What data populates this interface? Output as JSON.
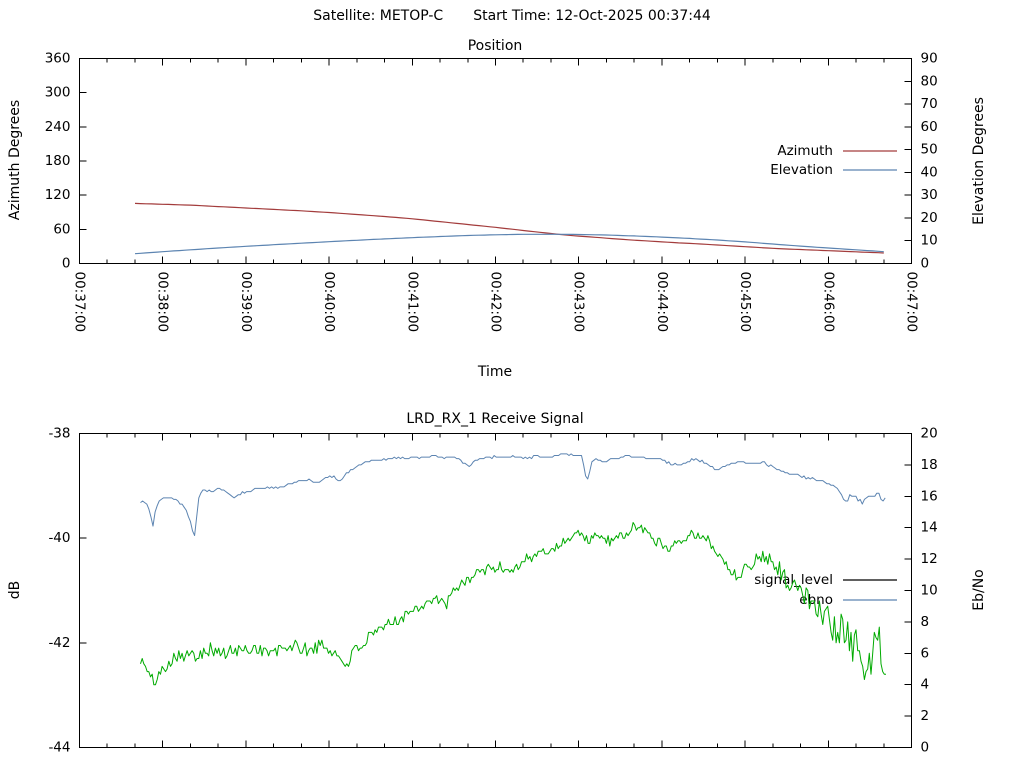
{
  "header": {
    "satellite": "Satellite: METOP-C",
    "start_time": "Start Time: 12-Oct-2025 00:37:44"
  },
  "colors": {
    "azimuth": "#a33c3c",
    "elevation": "#5c84b1",
    "signal": "#00aa00",
    "ebno": "#5c84b1",
    "legend_signal_sample": "#000000",
    "axis": "#000000",
    "background": "#ffffff"
  },
  "chart_data": [
    {
      "type": "line",
      "title": "Position",
      "xlabel": "Time",
      "ylabel_left": "Azimuth Degrees",
      "ylabel_right": "Elevation Degrees",
      "x_range": [
        0,
        600
      ],
      "x_ticks": {
        "values": [
          0,
          60,
          120,
          180,
          240,
          300,
          360,
          420,
          480,
          540,
          600
        ],
        "labels": [
          "00:37:00",
          "00:38:00",
          "00:39:00",
          "00:40:00",
          "00:41:00",
          "00:42:00",
          "00:43:00",
          "00:44:00",
          "00:45:00",
          "00:46:00",
          "00:47:00"
        ],
        "minor_step": 20
      },
      "y_left": {
        "min": 0,
        "max": 360,
        "values": [
          0,
          60,
          120,
          180,
          240,
          300,
          360
        ],
        "labels": [
          "0",
          "60",
          "120",
          "180",
          "240",
          "300",
          "360"
        ]
      },
      "y_right": {
        "min": 0,
        "max": 90,
        "values": [
          0,
          10,
          20,
          30,
          40,
          50,
          60,
          70,
          80,
          90
        ],
        "labels": [
          "0",
          "10",
          "20",
          "30",
          "40",
          "50",
          "60",
          "70",
          "80",
          "90"
        ]
      },
      "legend": [
        {
          "label": "Azimuth",
          "line_color": "#a33c3c"
        },
        {
          "label": "Elevation",
          "line_color": "#5c84b1"
        }
      ],
      "series": [
        {
          "name": "Azimuth",
          "axis": "left",
          "color": "#a33c3c",
          "width": 1.2,
          "sample_step": 4,
          "anchors": [
            [
              40,
              105.5
            ],
            [
              80,
              102.5
            ],
            [
              120,
              97.5
            ],
            [
              160,
              92.5
            ],
            [
              180,
              89.5
            ],
            [
              215,
              83.5
            ],
            [
              240,
              78.5
            ],
            [
              270,
              71
            ],
            [
              300,
              63.5
            ],
            [
              320,
              58
            ],
            [
              350,
              50
            ],
            [
              380,
              44.5
            ],
            [
              400,
              41
            ],
            [
              430,
              36.5
            ],
            [
              450,
              34
            ],
            [
              480,
              29.5
            ],
            [
              505,
              26
            ],
            [
              540,
              22.5
            ],
            [
              560,
              20.5
            ],
            [
              580,
              18.5
            ]
          ]
        },
        {
          "name": "Elevation",
          "axis": "right",
          "color": "#5c84b1",
          "width": 1.2,
          "sample_step": 4,
          "anchors": [
            [
              40,
              4.3
            ],
            [
              70,
              5.6
            ],
            [
              100,
              6.8
            ],
            [
              130,
              7.9
            ],
            [
              160,
              8.9
            ],
            [
              190,
              9.9
            ],
            [
              220,
              10.8
            ],
            [
              250,
              11.6
            ],
            [
              280,
              12.3
            ],
            [
              300,
              12.6
            ],
            [
              320,
              12.8
            ],
            [
              340,
              12.85
            ],
            [
              360,
              12.75
            ],
            [
              380,
              12.5
            ],
            [
              400,
              12.1
            ],
            [
              420,
              11.6
            ],
            [
              440,
              11.0
            ],
            [
              460,
              10.3
            ],
            [
              480,
              9.5
            ],
            [
              505,
              8.3
            ],
            [
              525,
              7.4
            ],
            [
              545,
              6.6
            ],
            [
              565,
              5.8
            ],
            [
              580,
              5.2
            ]
          ]
        }
      ]
    },
    {
      "type": "line",
      "title": "LRD_RX_1 Receive Signal",
      "xlabel": "",
      "ylabel_left": "dB",
      "ylabel_right": "Eb/No",
      "x_range": [
        0,
        600
      ],
      "x_ticks": {
        "values": [
          0,
          60,
          120,
          180,
          240,
          300,
          360,
          420,
          480,
          540,
          600
        ],
        "labels": [],
        "minor_step": 20
      },
      "y_left": {
        "min": -44,
        "max": -38,
        "values": [
          -44,
          -42,
          -40,
          -38
        ],
        "labels": [
          "-44",
          "-42",
          "-40",
          "-38"
        ]
      },
      "y_right": {
        "min": 0,
        "max": 20,
        "values": [
          0,
          2,
          4,
          6,
          8,
          10,
          12,
          14,
          16,
          18,
          20
        ],
        "labels": [
          "0",
          "2",
          "4",
          "6",
          "8",
          "10",
          "12",
          "14",
          "16",
          "18",
          "20"
        ]
      },
      "legend": [
        {
          "label": "signal_level",
          "line_color": "#000000"
        },
        {
          "label": "ebno",
          "line_color": "#5c84b1"
        }
      ],
      "series": [
        {
          "name": "signal_level",
          "axis": "left",
          "color": "#00aa00",
          "width": 1.0,
          "sample_step": 1.2,
          "quantize": 0.05,
          "noise_seed": 101,
          "anchors": [
            [
              44,
              -42.3
            ],
            [
              48,
              -42.5
            ],
            [
              53,
              -42.75
            ],
            [
              58,
              -42.6
            ],
            [
              64,
              -42.35
            ],
            [
              72,
              -42.2
            ],
            [
              82,
              -42.25
            ],
            [
              92,
              -42.1
            ],
            [
              104,
              -42.2
            ],
            [
              116,
              -42.15
            ],
            [
              128,
              -42.1
            ],
            [
              140,
              -42.2
            ],
            [
              152,
              -42.05
            ],
            [
              164,
              -42.15
            ],
            [
              175,
              -42.05
            ],
            [
              184,
              -42.2
            ],
            [
              192,
              -42.4
            ],
            [
              199,
              -42.15
            ],
            [
              208,
              -41.95
            ],
            [
              220,
              -41.7
            ],
            [
              232,
              -41.5
            ],
            [
              244,
              -41.3
            ],
            [
              256,
              -41.15
            ],
            [
              264,
              -41.3
            ],
            [
              272,
              -40.95
            ],
            [
              282,
              -40.75
            ],
            [
              292,
              -40.6
            ],
            [
              302,
              -40.55
            ],
            [
              312,
              -40.6
            ],
            [
              322,
              -40.4
            ],
            [
              332,
              -40.3
            ],
            [
              342,
              -40.2
            ],
            [
              352,
              -40.0
            ],
            [
              360,
              -39.9
            ],
            [
              368,
              -40.05
            ],
            [
              376,
              -39.95
            ],
            [
              384,
              -40.1
            ],
            [
              392,
              -39.95
            ],
            [
              400,
              -39.8
            ],
            [
              408,
              -39.85
            ],
            [
              416,
              -40.05
            ],
            [
              424,
              -40.2
            ],
            [
              432,
              -40.05
            ],
            [
              440,
              -39.9
            ],
            [
              448,
              -40.0
            ],
            [
              456,
              -40.1
            ],
            [
              462,
              -40.35
            ],
            [
              468,
              -40.55
            ],
            [
              474,
              -40.7
            ],
            [
              480,
              -40.6
            ],
            [
              486,
              -40.45
            ],
            [
              492,
              -40.35
            ],
            [
              498,
              -40.4
            ],
            [
              504,
              -40.55
            ],
            [
              510,
              -40.8
            ],
            [
              516,
              -41.0
            ],
            [
              524,
              -41.1
            ],
            [
              532,
              -41.25
            ],
            [
              540,
              -41.5
            ],
            [
              546,
              -41.9
            ],
            [
              551,
              -41.7
            ],
            [
              556,
              -42.1
            ],
            [
              560,
              -41.9
            ],
            [
              564,
              -42.3
            ],
            [
              568,
              -42.7
            ],
            [
              572,
              -42.2
            ],
            [
              576,
              -41.8
            ],
            [
              579,
              -42.3
            ],
            [
              582,
              -42.6
            ]
          ],
          "noise_amp": [
            [
              44,
              0.13
            ],
            [
              190,
              0.13
            ],
            [
              240,
              0.11
            ],
            [
              330,
              0.1
            ],
            [
              450,
              0.1
            ],
            [
              500,
              0.15
            ],
            [
              530,
              0.25
            ],
            [
              545,
              0.33
            ],
            [
              582,
              0.35
            ]
          ]
        },
        {
          "name": "ebno",
          "axis": "right",
          "color": "#5c84b1",
          "width": 1.0,
          "sample_step": 1.5,
          "quantize": 0.1,
          "noise_seed": 202,
          "anchors": [
            [
              44,
              15.7
            ],
            [
              48,
              15.6
            ],
            [
              51,
              15.0
            ],
            [
              53,
              14.1
            ],
            [
              55,
              15.3
            ],
            [
              58,
              15.8
            ],
            [
              63,
              15.9
            ],
            [
              68,
              15.9
            ],
            [
              72,
              15.6
            ],
            [
              76,
              15.3
            ],
            [
              80,
              14.4
            ],
            [
              83,
              13.4
            ],
            [
              86,
              15.9
            ],
            [
              89,
              16.4
            ],
            [
              95,
              16.35
            ],
            [
              102,
              16.45
            ],
            [
              108,
              16.15
            ],
            [
              112,
              15.9
            ],
            [
              117,
              16.2
            ],
            [
              123,
              16.35
            ],
            [
              130,
              16.5
            ],
            [
              137,
              16.55
            ],
            [
              144,
              16.5
            ],
            [
              151,
              16.75
            ],
            [
              158,
              16.95
            ],
            [
              165,
              17.0
            ],
            [
              171,
              16.9
            ],
            [
              177,
              17.15
            ],
            [
              183,
              17.3
            ],
            [
              187,
              16.95
            ],
            [
              192,
              17.4
            ],
            [
              197,
              17.75
            ],
            [
              202,
              18.05
            ],
            [
              208,
              18.2
            ],
            [
              214,
              18.3
            ],
            [
              222,
              18.4
            ],
            [
              230,
              18.45
            ],
            [
              238,
              18.4
            ],
            [
              246,
              18.5
            ],
            [
              254,
              18.55
            ],
            [
              262,
              18.5
            ],
            [
              270,
              18.45
            ],
            [
              276,
              18.2
            ],
            [
              281,
              17.95
            ],
            [
              286,
              18.3
            ],
            [
              292,
              18.45
            ],
            [
              298,
              18.5
            ],
            [
              306,
              18.5
            ],
            [
              314,
              18.55
            ],
            [
              322,
              18.45
            ],
            [
              330,
              18.55
            ],
            [
              338,
              18.5
            ],
            [
              346,
              18.6
            ],
            [
              352,
              18.7
            ],
            [
              357,
              18.6
            ],
            [
              362,
              18.55
            ],
            [
              366,
              16.9
            ],
            [
              370,
              18.4
            ],
            [
              375,
              18.3
            ],
            [
              380,
              18.2
            ],
            [
              386,
              18.45
            ],
            [
              393,
              18.55
            ],
            [
              400,
              18.5
            ],
            [
              407,
              18.45
            ],
            [
              414,
              18.4
            ],
            [
              420,
              18.35
            ],
            [
              426,
              18.1
            ],
            [
              432,
              18.0
            ],
            [
              438,
              18.2
            ],
            [
              444,
              18.35
            ],
            [
              450,
              18.2
            ],
            [
              456,
              17.9
            ],
            [
              460,
              17.6
            ],
            [
              464,
              17.85
            ],
            [
              468,
              18.05
            ],
            [
              473,
              18.15
            ],
            [
              478,
              18.2
            ],
            [
              483,
              18.05
            ],
            [
              488,
              18.15
            ],
            [
              493,
              18.2
            ],
            [
              498,
              17.95
            ],
            [
              504,
              17.7
            ],
            [
              510,
              17.5
            ],
            [
              516,
              17.4
            ],
            [
              522,
              17.25
            ],
            [
              528,
              17.1
            ],
            [
              534,
              17.0
            ],
            [
              540,
              16.8
            ],
            [
              545,
              16.55
            ],
            [
              549,
              16.3
            ],
            [
              553,
              15.6
            ],
            [
              556,
              16.15
            ],
            [
              559,
              16.0
            ],
            [
              562,
              15.7
            ],
            [
              565,
              15.6
            ],
            [
              568,
              15.85
            ],
            [
              571,
              15.9
            ],
            [
              574,
              16.15
            ],
            [
              577,
              16.05
            ],
            [
              579,
              15.8
            ],
            [
              581,
              15.9
            ]
          ],
          "noise_amp": [
            [
              44,
              0.07
            ],
            [
              540,
              0.07
            ],
            [
              550,
              0.15
            ],
            [
              581,
              0.12
            ]
          ]
        }
      ]
    }
  ]
}
